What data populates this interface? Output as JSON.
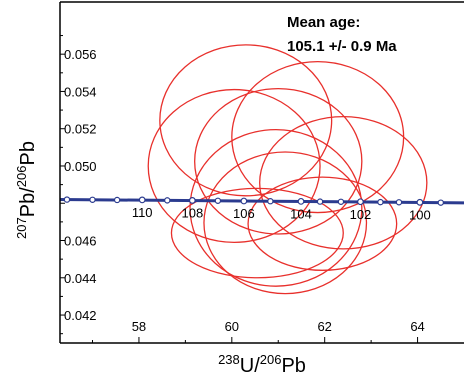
{
  "chart_data": {
    "type": "scatter",
    "subtype": "concordia-error-ellipses",
    "title": "",
    "annotation": {
      "line1": "Mean age:",
      "line2": "105.1 +/- 0.9 Ma"
    },
    "xlabel": {
      "sup1": "238",
      "base1": "U/",
      "sup2": "206",
      "base2": "Pb"
    },
    "ylabel": {
      "sup1": "207",
      "base1": "Pb/",
      "sup2": "206",
      "base2": "Pb"
    },
    "xlim": [
      56.3,
      65.0
    ],
    "ylim": [
      0.0405,
      0.0588
    ],
    "x_ticks": [
      58,
      60,
      62,
      64
    ],
    "y_ticks": [
      0.042,
      0.044,
      0.046,
      0.048,
      0.05,
      0.052,
      0.054,
      0.056
    ],
    "y_tick_labels": [
      "0.042",
      "0.044",
      "0.046",
      "",
      "0.050",
      "0.052",
      "0.054",
      "0.056"
    ],
    "grid": false,
    "colors": {
      "ellipse": "#e8302c",
      "concordia": "#2b3b8f",
      "axis": "#000000"
    },
    "concordia": {
      "points": [
        {
          "x": 56.3,
          "y": 0.0482
        },
        {
          "x": 62.3,
          "y": 0.04808
        },
        {
          "x": 65.0,
          "y": 0.04802
        }
      ],
      "age_markers": [
        {
          "age": "110",
          "x": 58.07,
          "y": 0.04818
        },
        {
          "age": "108",
          "x": 59.15,
          "y": 0.04815
        },
        {
          "age": "106",
          "x": 60.26,
          "y": 0.04812
        },
        {
          "age": "104",
          "x": 61.49,
          "y": 0.0481
        },
        {
          "age": "102",
          "x": 62.77,
          "y": 0.04808
        },
        {
          "age": "100",
          "x": 64.05,
          "y": 0.04805
        }
      ],
      "extra_markers": [
        {
          "x": 56.45
        },
        {
          "x": 57.0
        },
        {
          "x": 57.53
        },
        {
          "x": 58.61
        },
        {
          "x": 59.7
        },
        {
          "x": 60.83
        },
        {
          "x": 61.9
        },
        {
          "x": 62.35
        },
        {
          "x": 63.2
        },
        {
          "x": 63.6
        },
        {
          "x": 64.5
        }
      ]
    },
    "ellipses": [
      {
        "cx": 60.3,
        "cy": 0.05245,
        "rx": 1.85,
        "ry": 0.00405
      },
      {
        "cx": 61.85,
        "cy": 0.05155,
        "rx": 1.85,
        "ry": 0.00405
      },
      {
        "cx": 60.05,
        "cy": 0.05,
        "rx": 1.85,
        "ry": 0.0041
      },
      {
        "cx": 61.0,
        "cy": 0.05025,
        "rx": 1.8,
        "ry": 0.0039
      },
      {
        "cx": 60.95,
        "cy": 0.04775,
        "rx": 1.85,
        "ry": 0.0042
      },
      {
        "cx": 61.15,
        "cy": 0.04695,
        "rx": 1.75,
        "ry": 0.0038
      },
      {
        "cx": 62.4,
        "cy": 0.0491,
        "rx": 1.8,
        "ry": 0.00355
      },
      {
        "cx": 61.95,
        "cy": 0.0469,
        "rx": 1.6,
        "ry": 0.0025
      },
      {
        "cx": 60.55,
        "cy": 0.0464,
        "rx": 1.85,
        "ry": 0.0024
      }
    ]
  }
}
